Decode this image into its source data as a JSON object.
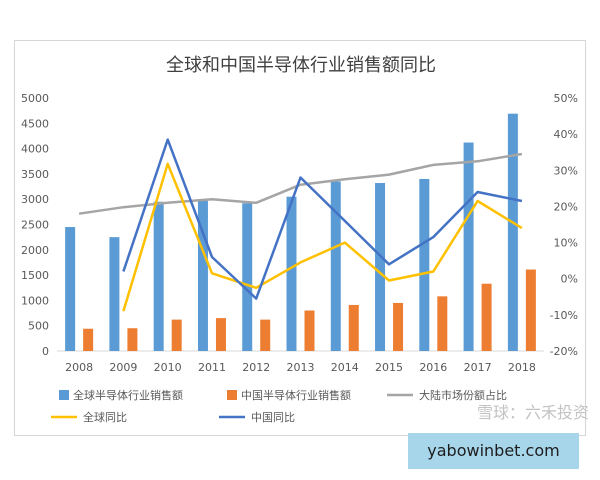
{
  "watermark": "雪球：六禾投资",
  "site_banner": "yabowinbet.com",
  "chart_data": {
    "type": "bar",
    "title": "全球和中国半导体行业销售额同比",
    "categories": [
      "2008",
      "2009",
      "2010",
      "2011",
      "2012",
      "2013",
      "2014",
      "2015",
      "2016",
      "2017",
      "2018"
    ],
    "y_left": {
      "range": [
        0,
        5000
      ],
      "ticks": [
        "0",
        "500",
        "1000",
        "1500",
        "2000",
        "2500",
        "3000",
        "3500",
        "4000",
        "4500",
        "5000"
      ]
    },
    "y_right": {
      "range": [
        -20,
        50
      ],
      "ticks": [
        "-20%",
        "-10%",
        "0%",
        "10%",
        "20%",
        "30%",
        "40%",
        "50%"
      ]
    },
    "series": [
      {
        "name": "全球半导体行业销售额",
        "type": "bar",
        "axis": "left",
        "color": "#5b9bd5",
        "values": [
          2450,
          2250,
          2950,
          2970,
          2920,
          3050,
          3350,
          3320,
          3400,
          4120,
          4690
        ]
      },
      {
        "name": "中国半导体行业销售额",
        "type": "bar",
        "axis": "left",
        "color": "#ed7d31",
        "values": [
          440,
          450,
          620,
          650,
          620,
          800,
          910,
          950,
          1080,
          1330,
          1610
        ]
      },
      {
        "name": "大陆市场份额占比",
        "type": "line",
        "axis": "right",
        "color": "#a5a5a5",
        "values": [
          18.0,
          19.8,
          21.0,
          22.0,
          21.0,
          26.0,
          27.5,
          28.8,
          31.5,
          32.5,
          34.5
        ]
      },
      {
        "name": "全球同比",
        "type": "line",
        "axis": "right",
        "color": "#ffc000",
        "values": [
          null,
          -9.0,
          31.8,
          1.5,
          -2.5,
          4.5,
          10.0,
          -0.5,
          2.0,
          21.5,
          14.0
        ]
      },
      {
        "name": "中国同比",
        "type": "line",
        "axis": "right",
        "color": "#4472c4",
        "values": [
          null,
          2.0,
          38.5,
          6.0,
          -5.5,
          28.0,
          16.0,
          4.0,
          11.5,
          24.0,
          21.5
        ]
      }
    ],
    "legend_position": "bottom",
    "grid": false
  }
}
